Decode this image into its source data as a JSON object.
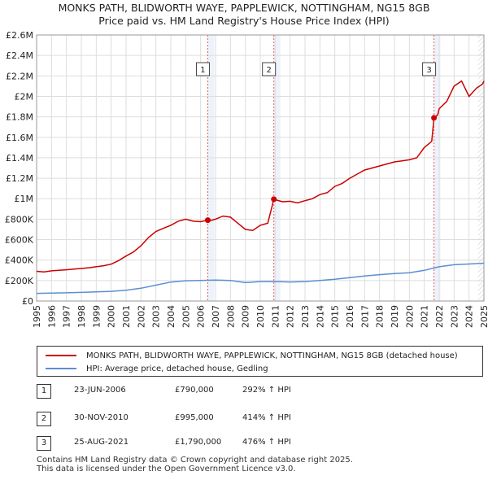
{
  "title_line1": "MONKS PATH, BLIDWORTH WAYE, PAPPLEWICK, NOTTINGHAM, NG15 8GB",
  "title_line2": "Price paid vs. HM Land Registry's House Price Index (HPI)",
  "chart_data": {
    "type": "line",
    "title": "MONKS PATH, BLIDWORTH WAYE, PAPPLEWICK, NOTTINGHAM, NG15 8GB — Price paid vs. HM Land Registry's House Price Index (HPI)",
    "xlabel": "",
    "ylabel": "",
    "xlim": [
      1995,
      2025
    ],
    "ylim": [
      0,
      2600000
    ],
    "grid": true,
    "y_ticks": [
      {
        "value": 0,
        "label": "£0"
      },
      {
        "value": 200000,
        "label": "£200K"
      },
      {
        "value": 400000,
        "label": "£400K"
      },
      {
        "value": 600000,
        "label": "£600K"
      },
      {
        "value": 800000,
        "label": "£800K"
      },
      {
        "value": 1000000,
        "label": "£1M"
      },
      {
        "value": 1200000,
        "label": "£1.2M"
      },
      {
        "value": 1400000,
        "label": "£1.4M"
      },
      {
        "value": 1600000,
        "label": "£1.6M"
      },
      {
        "value": 1800000,
        "label": "£1.8M"
      },
      {
        "value": 2000000,
        "label": "£2M"
      },
      {
        "value": 2200000,
        "label": "£2.2M"
      },
      {
        "value": 2400000,
        "label": "£2.4M"
      },
      {
        "value": 2600000,
        "label": "£2.6M"
      }
    ],
    "x_ticks": [
      "1995",
      "1996",
      "1997",
      "1998",
      "1999",
      "2000",
      "2001",
      "2002",
      "2003",
      "2004",
      "2005",
      "2006",
      "2007",
      "2008",
      "2009",
      "2010",
      "2011",
      "2012",
      "2013",
      "2014",
      "2015",
      "2016",
      "2017",
      "2018",
      "2019",
      "2020",
      "2021",
      "2022",
      "2023",
      "2024",
      "2025"
    ],
    "series": [
      {
        "name": "MONKS PATH, BLIDWORTH WAYE, PAPPLEWICK, NOTTINGHAM, NG15 8GB (detached house)",
        "color": "#cc0000",
        "x": [
          1995.0,
          1995.5,
          1996.0,
          1996.5,
          1997.0,
          1997.5,
          1998.0,
          1998.5,
          1999.0,
          1999.5,
          2000.0,
          2000.5,
          2001.0,
          2001.5,
          2002.0,
          2002.5,
          2003.0,
          2003.5,
          2004.0,
          2004.5,
          2005.0,
          2005.5,
          2006.0,
          2006.48,
          2006.6,
          2007.0,
          2007.5,
          2008.0,
          2008.5,
          2009.0,
          2009.5,
          2010.0,
          2010.5,
          2010.91,
          2011.0,
          2011.5,
          2012.0,
          2012.5,
          2013.0,
          2013.5,
          2014.0,
          2014.5,
          2015.0,
          2015.5,
          2016.0,
          2016.5,
          2017.0,
          2017.5,
          2018.0,
          2018.5,
          2019.0,
          2019.5,
          2020.0,
          2020.5,
          2021.0,
          2021.5,
          2021.65,
          2021.9,
          2022.0,
          2022.5,
          2023.0,
          2023.5,
          2024.0,
          2024.5,
          2024.9,
          2025.0
        ],
        "y": [
          290000,
          285000,
          295000,
          300000,
          305000,
          312000,
          318000,
          325000,
          335000,
          345000,
          360000,
          395000,
          440000,
          480000,
          540000,
          620000,
          680000,
          710000,
          740000,
          780000,
          800000,
          780000,
          775000,
          790000,
          785000,
          800000,
          830000,
          820000,
          760000,
          700000,
          690000,
          740000,
          760000,
          995000,
          990000,
          970000,
          975000,
          960000,
          980000,
          1000000,
          1040000,
          1060000,
          1120000,
          1150000,
          1200000,
          1240000,
          1280000,
          1300000,
          1320000,
          1340000,
          1360000,
          1370000,
          1380000,
          1400000,
          1500000,
          1560000,
          1790000,
          1820000,
          1880000,
          1950000,
          2100000,
          2150000,
          2000000,
          2080000,
          2120000,
          2150000
        ]
      },
      {
        "name": "HPI: Average price, detached house, Gedling",
        "color": "#5b8fd0",
        "x": [
          1995.0,
          1996.0,
          1997.0,
          1998.0,
          1999.0,
          2000.0,
          2001.0,
          2002.0,
          2003.0,
          2004.0,
          2005.0,
          2006.0,
          2007.0,
          2008.0,
          2009.0,
          2010.0,
          2011.0,
          2012.0,
          2013.0,
          2014.0,
          2015.0,
          2016.0,
          2017.0,
          2018.0,
          2019.0,
          2020.0,
          2021.0,
          2022.0,
          2023.0,
          2024.0,
          2025.0
        ],
        "y": [
          75000,
          77000,
          80000,
          84000,
          89000,
          95000,
          105000,
          125000,
          155000,
          185000,
          198000,
          200000,
          205000,
          200000,
          180000,
          190000,
          190000,
          186000,
          190000,
          200000,
          212000,
          228000,
          245000,
          258000,
          268000,
          276000,
          300000,
          335000,
          355000,
          362000,
          370000
        ]
      }
    ],
    "markers": [
      {
        "label": "1",
        "x": 2006.48,
        "y": 790000,
        "date": "23-JUN-2006",
        "price": "£790,000",
        "hpi": "292% ↑ HPI"
      },
      {
        "label": "2",
        "x": 2010.91,
        "y": 995000,
        "date": "30-NOV-2010",
        "price": "£995,000",
        "hpi": "414% ↑ HPI"
      },
      {
        "label": "3",
        "x": 2021.65,
        "y": 1790000,
        "date": "25-AUG-2021",
        "price": "£1,790,000",
        "hpi": "476% ↑ HPI"
      }
    ]
  },
  "legend": {
    "items": [
      {
        "label": "MONKS PATH, BLIDWORTH WAYE, PAPPLEWICK, NOTTINGHAM, NG15 8GB (detached house)",
        "color": "#cc0000"
      },
      {
        "label": "HPI: Average price, detached house, Gedling",
        "color": "#5b8fd0"
      }
    ]
  },
  "footer": {
    "line1": "Contains HM Land Registry data © Crown copyright and database right 2025.",
    "line2": "This data is licensed under the Open Government Licence v3.0."
  }
}
